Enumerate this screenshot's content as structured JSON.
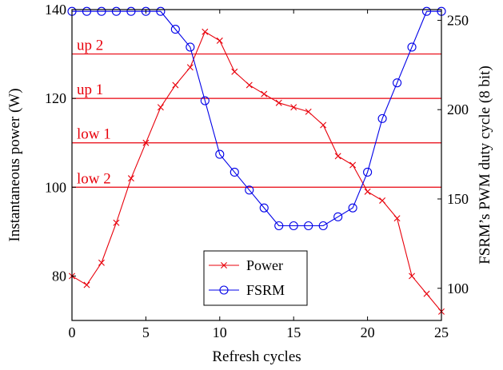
{
  "chart_data": {
    "type": "line",
    "xlabel": "Refresh cycles",
    "ylabel_left": "Instantaneous power (W)",
    "ylabel_right": "FSRM’s PWM duty cycle (8 bit)",
    "xlim": [
      0,
      25
    ],
    "ylim_left": [
      70,
      140
    ],
    "ylim_right": [
      82,
      256
    ],
    "x_ticks": [
      0,
      5,
      10,
      15,
      20,
      25
    ],
    "y_ticks_left": [
      80,
      100,
      120,
      140
    ],
    "y_ticks_right": [
      100,
      150,
      200,
      250
    ],
    "grid": false,
    "legend_position": "bottom-center",
    "reference_lines": [
      {
        "label": "up 2",
        "y": 130
      },
      {
        "label": "up 1",
        "y": 120
      },
      {
        "label": "low 1",
        "y": 110
      },
      {
        "label": "low 2",
        "y": 100
      }
    ],
    "series": [
      {
        "name": "Power",
        "axis": "left",
        "color": "#e8000b",
        "marker": "x",
        "x": [
          0,
          1,
          2,
          3,
          4,
          5,
          6,
          7,
          8,
          9,
          10,
          11,
          12,
          13,
          14,
          15,
          16,
          17,
          18,
          19,
          20,
          21,
          22,
          23,
          24,
          25
        ],
        "values": [
          80,
          78,
          83,
          92,
          102,
          110,
          118,
          123,
          127,
          135,
          133,
          126,
          123,
          121,
          119,
          118,
          117,
          114,
          107,
          105,
          99,
          97,
          93,
          80,
          76,
          72
        ]
      },
      {
        "name": "FSRM",
        "axis": "right",
        "color": "#0000e8",
        "marker": "circle",
        "x": [
          0,
          1,
          2,
          3,
          4,
          5,
          6,
          7,
          8,
          9,
          10,
          11,
          12,
          13,
          14,
          15,
          16,
          17,
          18,
          19,
          20,
          21,
          22,
          23,
          24,
          25
        ],
        "values": [
          255,
          255,
          255,
          255,
          255,
          255,
          255,
          245,
          235,
          205,
          175,
          165,
          155,
          145,
          135,
          135,
          135,
          135,
          140,
          145,
          165,
          195,
          215,
          235,
          255,
          255
        ]
      }
    ]
  }
}
